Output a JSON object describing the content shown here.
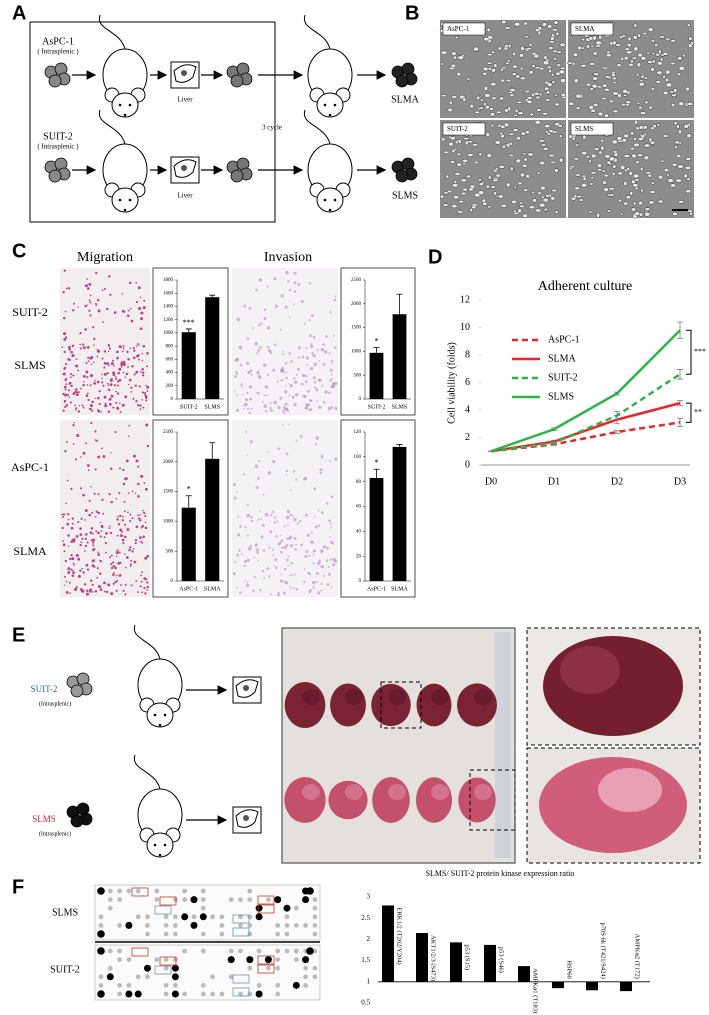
{
  "panel_a": {
    "letter": "A",
    "top_cell": "AsPC-1",
    "top_route": "( Intrasplenic )",
    "top_organ": "Liver",
    "top_result": "SLMA",
    "bottom_cell": "SUIT-2",
    "bottom_route": "( Intrasplenic )",
    "bottom_organ": "Liver",
    "bottom_result": "SLMS",
    "cycle": "3 cycle"
  },
  "panel_b": {
    "letter": "B",
    "images": [
      "AsPC-1",
      "SLMA",
      "SUIT-2",
      "SLMS"
    ]
  },
  "panel_c": {
    "letter": "C",
    "columns": [
      "Migration",
      "Invasion"
    ],
    "rows": [
      "SUIT-2",
      "SLMS",
      "AsPC-1",
      "SLMA"
    ]
  },
  "panel_d": {
    "letter": "D"
  },
  "panel_e": {
    "letter": "E",
    "top_cell": "SUIT-2",
    "top_route": "(Intrasplenic)",
    "bottom_cell": "SLMS",
    "bottom_route": "(Intrasplenic)"
  },
  "panel_f": {
    "letter": "F",
    "rows": [
      "SLMS",
      "SUIT-2"
    ]
  },
  "chart_data": [
    {
      "type": "bar",
      "categories": [
        "SUIT-2",
        "SLMS"
      ],
      "values": [
        1010,
        1540
      ],
      "errors": [
        50,
        30
      ],
      "color": "#000000",
      "ylim": [
        0,
        1800
      ],
      "yticks": [
        0,
        200,
        400,
        600,
        800,
        1000,
        1200,
        1400,
        1600,
        1800
      ],
      "annotation": "***"
    },
    {
      "type": "bar",
      "categories": [
        "SUIT-2",
        "SLMS"
      ],
      "values": [
        970,
        1780
      ],
      "errors": [
        110,
        420
      ],
      "color": "#000000",
      "ylim": [
        0,
        2500
      ],
      "yticks": [
        0,
        500,
        1000,
        1500,
        2000,
        2500
      ],
      "annotation": "*"
    },
    {
      "type": "bar",
      "categories": [
        "AsPC-1",
        "SLMA"
      ],
      "values": [
        1230,
        2050
      ],
      "errors": [
        200,
        270
      ],
      "color": "#000000",
      "ylim": [
        0,
        2500
      ],
      "yticks": [
        0,
        500,
        1000,
        1500,
        2000,
        2500
      ],
      "annotation": "*"
    },
    {
      "type": "bar",
      "categories": [
        "AsPC-1",
        "SLMA"
      ],
      "values": [
        83,
        108
      ],
      "errors": [
        7,
        2
      ],
      "color": "#000000",
      "ylim": [
        0,
        120
      ],
      "yticks": [
        0,
        20,
        40,
        60,
        80,
        100,
        120
      ],
      "annotation": "*"
    },
    {
      "type": "line",
      "title": "Adherent culture",
      "y_label": "Cell viability (folds)",
      "categories": [
        "D0",
        "D1",
        "D2",
        "D3"
      ],
      "series": [
        {
          "name": "AsPC-1",
          "color": "#e8262a",
          "dash": true,
          "values": [
            1,
            1.5,
            2.4,
            3.1
          ],
          "errors": [
            0,
            0.05,
            0.1,
            0.3
          ]
        },
        {
          "name": "SLMA",
          "color": "#e8262a",
          "dash": false,
          "values": [
            1,
            1.7,
            3.3,
            4.5
          ],
          "errors": [
            0,
            0.1,
            0.3,
            0.2
          ]
        },
        {
          "name": "SUIT-2",
          "color": "#2db34a",
          "dash": true,
          "values": [
            1,
            1.6,
            3.6,
            6.6
          ],
          "errors": [
            0,
            0.1,
            0.3,
            0.35
          ]
        },
        {
          "name": "SLMS",
          "color": "#2db34a",
          "dash": false,
          "values": [
            1,
            2.6,
            5.2,
            9.8
          ],
          "errors": [
            0,
            0.1,
            0.1,
            0.6
          ]
        }
      ],
      "ylim": [
        0,
        12
      ],
      "yticks": [
        0,
        2,
        4,
        6,
        8,
        10,
        12
      ],
      "annotations": [
        "***",
        "**"
      ]
    },
    {
      "type": "bar",
      "title": "SLMS/ SUIT-2 protein kinase expression ratio",
      "categories": [
        "ERK1/2 (T202/Y204)",
        "AKT1/2/3 (S473)",
        "p53 (S15)",
        "p53 (S46)",
        "AMPKα1 (T183)",
        "HSP60",
        "p70S 6k (T421/S424)",
        "AMPKα2 (T172)"
      ],
      "values": [
        2.8,
        2.15,
        1.93,
        1.87,
        1.37,
        0.85,
        0.8,
        0.78
      ],
      "color": "#000000",
      "baseline": 1,
      "ylim": [
        0.5,
        3
      ],
      "yticks": [
        0.5,
        1,
        1.5,
        2,
        2.5,
        3
      ]
    }
  ]
}
